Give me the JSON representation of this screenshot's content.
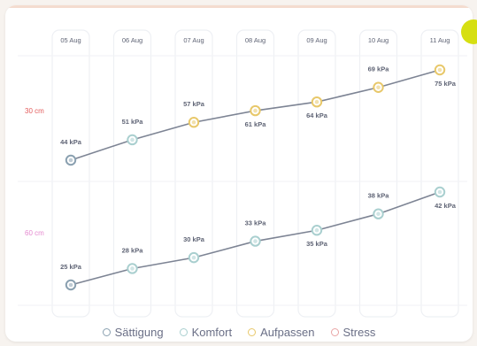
{
  "chart_data": {
    "type": "line",
    "categories": [
      "05 Aug",
      "06 Aug",
      "07 Aug",
      "08 Aug",
      "09 Aug",
      "10 Aug",
      "11 Aug"
    ],
    "y_groups": [
      {
        "label": "30 cm",
        "color": "#e35b5b"
      },
      {
        "label": "60 cm",
        "color": "#e58ad0"
      }
    ],
    "series": [
      {
        "group": "30 cm",
        "values": [
          44,
          51,
          57,
          61,
          64,
          69,
          75
        ],
        "labels": [
          "44 kPa",
          "51 kPa",
          "57 kPa",
          "61 kPa",
          "64 kPa",
          "69 kPa",
          "75 kPa"
        ],
        "marker_types": [
          "Sättigung",
          "Komfort",
          "Aufpassen",
          "Aufpassen",
          "Aufpassen",
          "Aufpassen",
          "Aufpassen"
        ]
      },
      {
        "group": "60 cm",
        "values": [
          25,
          28,
          30,
          33,
          35,
          38,
          42
        ],
        "labels": [
          "25 kPa",
          "28 kPa",
          "30 kPa",
          "33 kPa",
          "35 kPa",
          "38 kPa",
          "42 kPa"
        ],
        "marker_types": [
          "Sättigung",
          "Komfort",
          "Komfort",
          "Komfort",
          "Komfort",
          "Komfort",
          "Komfort"
        ]
      }
    ],
    "legend": [
      {
        "name": "Sättigung",
        "color": "#8aa0b0"
      },
      {
        "name": "Komfort",
        "color": "#a9cfcf"
      },
      {
        "name": "Aufpassen",
        "color": "#e8c86a"
      },
      {
        "name": "Stress",
        "color": "#e9a4a4"
      }
    ],
    "legend_position": "bottom-center"
  },
  "colors": {
    "line": "#7d8494",
    "column_border": "#eef0f4",
    "text": "#5f6475",
    "corner_badge": "#d6df12"
  }
}
